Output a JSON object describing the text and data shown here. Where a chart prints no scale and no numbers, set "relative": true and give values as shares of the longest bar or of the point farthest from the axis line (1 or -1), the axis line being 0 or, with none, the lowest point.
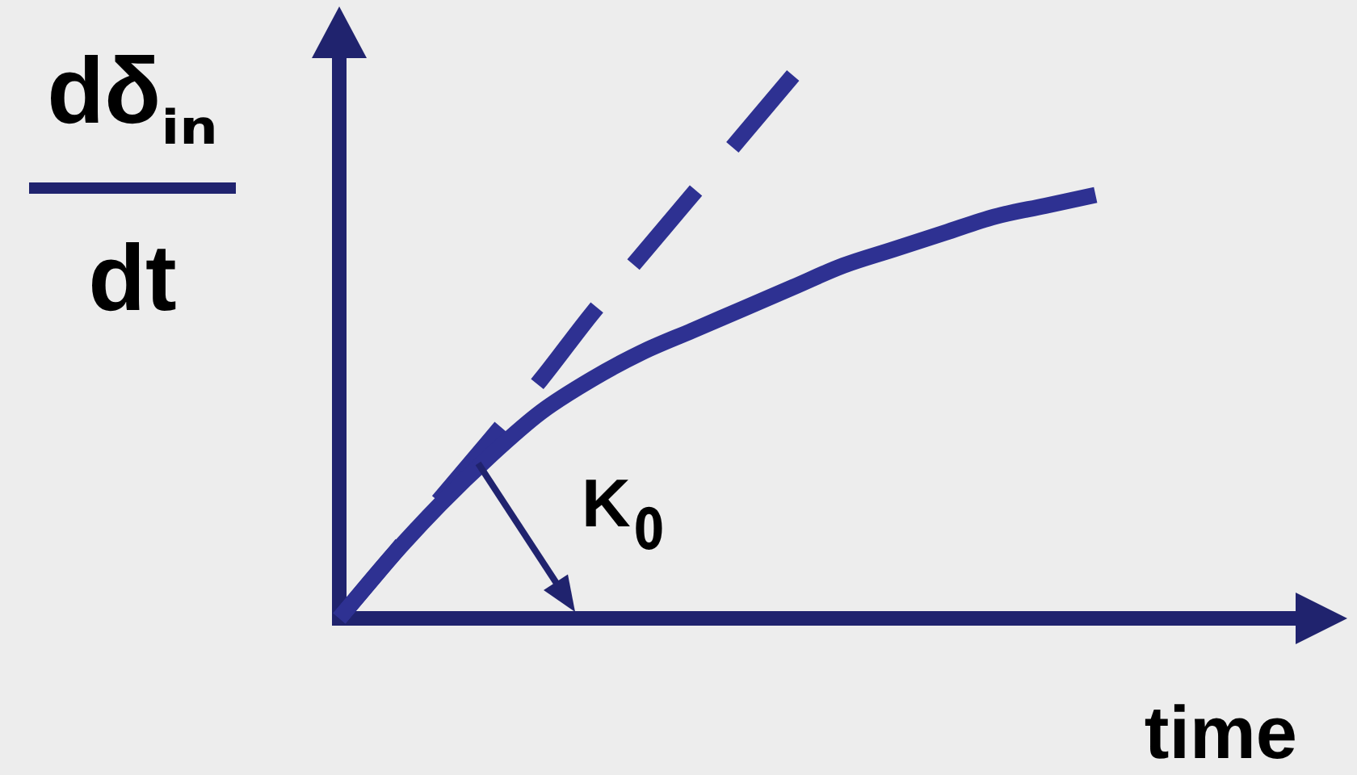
{
  "chart_data": {
    "type": "line",
    "relative": true,
    "tick_labels": false,
    "marker": "none",
    "xlabel": "time",
    "ylabel": "dδᵢₙ\ndt",
    "annotations": [
      "K₀"
    ],
    "categories": [
      null,
      null,
      null,
      null,
      null,
      null,
      null,
      null,
      null,
      null,
      null,
      null,
      null,
      null,
      null,
      null,
      null,
      null,
      null,
      null
    ],
    "series": [
      {
        "color": "#2e3192",
        "line_style": "solid",
        "values": [
          0,
          0.11,
          0.21,
          0.3,
          0.38,
          0.44,
          0.49,
          0.53,
          0.57,
          0.61,
          0.65,
          0.68,
          0.71,
          0.74,
          0.76,
          0.78,
          null,
          null,
          null,
          null
        ]
      },
      {
        "color": "#2e3192",
        "line_style": "dashed",
        "values": [
          0,
          0.11,
          0.22,
          0.33,
          0.44,
          0.56,
          0.67,
          0.78,
          0.89,
          1,
          null,
          null,
          null,
          null,
          null,
          null,
          null,
          null,
          null,
          null
        ]
      }
    ]
  }
}
